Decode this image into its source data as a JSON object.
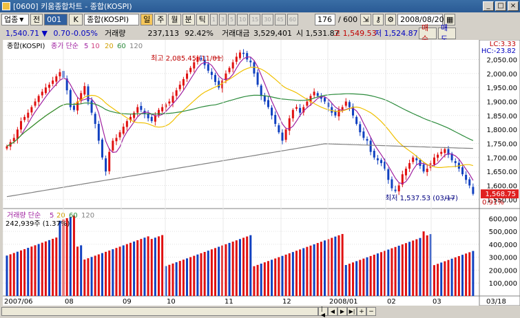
{
  "window": {
    "title": "[0600] 키움종합차트 - 종합(KOSPI)",
    "controls": [
      "_",
      "□",
      "×"
    ]
  },
  "toolbar": {
    "market": "업종",
    "prev_btn": "전",
    "code": "001",
    "code_icon": "K",
    "name": "종합(KOSPI)",
    "periods": [
      "일",
      "주",
      "월",
      "분",
      "틱"
    ],
    "period_active": "일",
    "minutes": [
      "1",
      "3",
      "5",
      "10",
      "15",
      "30",
      "45",
      "60"
    ],
    "count": "176",
    "count_total": "/ 600",
    "date": "2008/08/20"
  },
  "info": {
    "price": "1,540.71 ▼",
    "change": "0.70",
    "change_pct": "-0.05%",
    "vol_label": "거래량",
    "volume": "237,113",
    "vol_ratio": "92.42%",
    "amt_label": "거래대금",
    "amount": "3,529,401",
    "open": "시 1,531.87",
    "high": "고 1,549.53",
    "low": "저 1,524.87",
    "buy": "매수",
    "sell": "매도"
  },
  "chart_data": {
    "type": "candlestick",
    "main_legend": [
      "종합(KOSPI)",
      "종가 단순",
      "5",
      "10",
      "20",
      "60",
      "120"
    ],
    "vol_legend": [
      "거래량",
      "단순",
      "5",
      "20",
      "60",
      "120"
    ],
    "vol_value": "242,939주 (1.37%)",
    "lc": "LC:3.33",
    "hc": "HC:-23.82",
    "max_label": "최고 2,085.45 (11/01)",
    "min_label": "최저 1,537.53 (03/17)",
    "last_price": "1,568.75",
    "last_pct": "0.91%",
    "ylim": [
      1520,
      2120
    ],
    "yticks": [
      "2,050.00",
      "2,000.00",
      "1,950.00",
      "1,900.00",
      "1,850.00",
      "1,800.00",
      "1,750.00",
      "1,700.00",
      "1,650.00",
      "1,600.00",
      "1,550.00"
    ],
    "vol_yticks": [
      "600,000",
      "500,000",
      "400,000",
      "300,000",
      "200,000",
      "100,000"
    ],
    "x_labels": [
      "2007/06",
      "08",
      "09",
      "10",
      "11",
      "12",
      "2008/01",
      "02",
      "03",
      "03/18"
    ],
    "closes": [
      1740,
      1755,
      1770,
      1800,
      1830,
      1845,
      1860,
      1880,
      1900,
      1920,
      1935,
      1950,
      1960,
      1975,
      1990,
      2005,
      1985,
      1940,
      1880,
      1870,
      1900,
      1930,
      1955,
      1900,
      1860,
      1820,
      1760,
      1700,
      1650,
      1720,
      1760,
      1770,
      1790,
      1810,
      1830,
      1845,
      1860,
      1880,
      1870,
      1855,
      1840,
      1830,
      1850,
      1870,
      1880,
      1890,
      1900,
      1920,
      1940,
      1960,
      1980,
      2000,
      2020,
      2040,
      2060,
      2050,
      2030,
      2010,
      1995,
      1970,
      1950,
      1975,
      2000,
      2020,
      2040,
      2060,
      2075,
      2070,
      2050,
      2040,
      2000,
      1960,
      1920,
      1900,
      1880,
      1850,
      1820,
      1790,
      1760,
      1800,
      1840,
      1870,
      1880,
      1860,
      1880,
      1900,
      1920,
      1935,
      1920,
      1910,
      1900,
      1880,
      1860,
      1850,
      1870,
      1880,
      1900,
      1880,
      1850,
      1820,
      1790,
      1770,
      1760,
      1720,
      1700,
      1690,
      1680,
      1660,
      1620,
      1590,
      1580,
      1600,
      1640,
      1660,
      1680,
      1700,
      1690,
      1670,
      1650,
      1660,
      1680,
      1700,
      1710,
      1720,
      1730,
      1710,
      1690,
      1680,
      1660,
      1640,
      1620,
      1600,
      1570
    ]
  }
}
